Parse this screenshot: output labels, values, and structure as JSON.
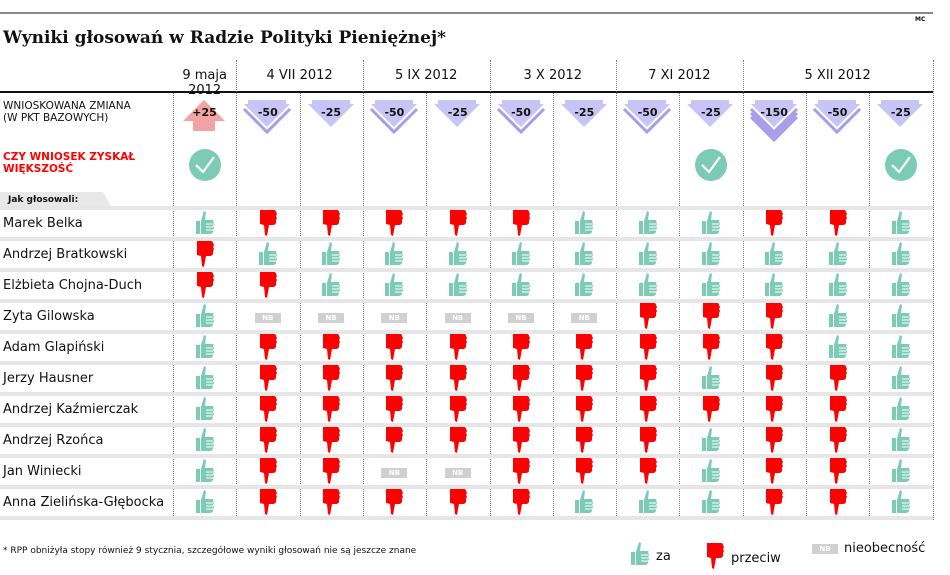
{
  "title": "Wyniki głosowań w Radzie Polityki Pieniężnej*",
  "credit": "MC",
  "labels": {
    "proposal": "WNIOSKOWANA ZMIANA (W PKT BAZOWYCH)",
    "majority": "CZY WNIOSEK ZYSKAŁ WIĘKSZOŚĆ",
    "how_voted": "Jak głosowali:"
  },
  "colors": {
    "za": "#7ccbb5",
    "przeciw": "#ff0000",
    "nb": "#d0d0d0",
    "cut": "#c8c4f5",
    "cut_outline": "#a99ce8",
    "hike": "#f2a3a3"
  },
  "meetings": [
    {
      "date": "9 maja 2012",
      "span": 1
    },
    {
      "date": "4 VII 2012",
      "span": 2
    },
    {
      "date": "5 IX 2012",
      "span": 2
    },
    {
      "date": "3 X 2012",
      "span": 2
    },
    {
      "date": "7 XI 2012",
      "span": 2
    },
    {
      "date": "5 XII 2012",
      "span": 3
    }
  ],
  "proposals": [
    {
      "change": "+25",
      "majority": true
    },
    {
      "change": "-50",
      "majority": false
    },
    {
      "change": "-25",
      "majority": false
    },
    {
      "change": "-50",
      "majority": false
    },
    {
      "change": "-25",
      "majority": false
    },
    {
      "change": "-50",
      "majority": false
    },
    {
      "change": "-25",
      "majority": false
    },
    {
      "change": "-50",
      "majority": false
    },
    {
      "change": "-25",
      "majority": true
    },
    {
      "change": "-150",
      "majority": false
    },
    {
      "change": "-50",
      "majority": false
    },
    {
      "change": "-25",
      "majority": true
    }
  ],
  "members": [
    {
      "name": "Marek Belka",
      "votes": [
        "za",
        "przeciw",
        "przeciw",
        "przeciw",
        "przeciw",
        "przeciw",
        "za",
        "za",
        "za",
        "przeciw",
        "przeciw",
        "za"
      ]
    },
    {
      "name": "Andrzej Bratkowski",
      "votes": [
        "przeciw",
        "za",
        "za",
        "za",
        "za",
        "za",
        "za",
        "za",
        "za",
        "za",
        "za",
        "za"
      ]
    },
    {
      "name": "Elżbieta Chojna-Duch",
      "votes": [
        "przeciw",
        "przeciw",
        "za",
        "za",
        "za",
        "za",
        "za",
        "za",
        "za",
        "za",
        "za",
        "za"
      ]
    },
    {
      "name": "Zyta Gilowska",
      "votes": [
        "za",
        "NB",
        "NB",
        "NB",
        "NB",
        "NB",
        "NB",
        "przeciw",
        "przeciw",
        "przeciw",
        "za",
        "za"
      ]
    },
    {
      "name": "Adam Glapiński",
      "votes": [
        "za",
        "przeciw",
        "przeciw",
        "przeciw",
        "przeciw",
        "przeciw",
        "przeciw",
        "przeciw",
        "przeciw",
        "przeciw",
        "za",
        "za"
      ]
    },
    {
      "name": "Jerzy Hausner",
      "votes": [
        "za",
        "przeciw",
        "przeciw",
        "przeciw",
        "przeciw",
        "przeciw",
        "przeciw",
        "przeciw",
        "za",
        "przeciw",
        "przeciw",
        "za"
      ]
    },
    {
      "name": "Andrzej Kaźmierczak",
      "votes": [
        "za",
        "przeciw",
        "przeciw",
        "przeciw",
        "przeciw",
        "przeciw",
        "przeciw",
        "przeciw",
        "przeciw",
        "przeciw",
        "przeciw",
        "za"
      ]
    },
    {
      "name": "Andrzej Rzońca",
      "votes": [
        "za",
        "przeciw",
        "przeciw",
        "przeciw",
        "przeciw",
        "przeciw",
        "przeciw",
        "przeciw",
        "za",
        "przeciw",
        "przeciw",
        "za"
      ]
    },
    {
      "name": "Jan Winiecki",
      "votes": [
        "za",
        "przeciw",
        "przeciw",
        "NB",
        "NB",
        "przeciw",
        "przeciw",
        "przeciw",
        "za",
        "przeciw",
        "przeciw",
        "za"
      ]
    },
    {
      "name": "Anna Zielińska-Głębocka",
      "votes": [
        "za",
        "przeciw",
        "przeciw",
        "przeciw",
        "przeciw",
        "przeciw",
        "za",
        "za",
        "za",
        "przeciw",
        "przeciw",
        "za"
      ]
    }
  ],
  "nb_label": "NB",
  "footnote": "* RPP obniżyła stopy również 9 stycznia, szczegółowe wyniki głosowań nie są jeszcze znane",
  "legend": {
    "za": "za",
    "przeciw": "przeciw",
    "nb": "nieobecność"
  }
}
